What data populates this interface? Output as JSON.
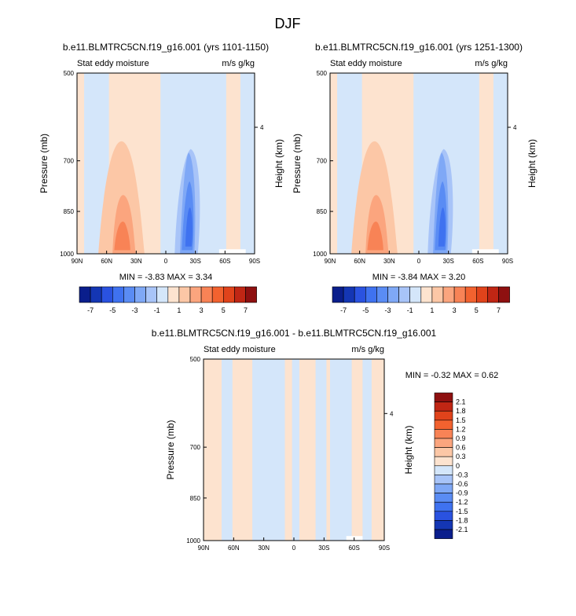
{
  "page": {
    "title": "DJF"
  },
  "colorbar_main": {
    "colors": [
      "#0a1e8c",
      "#1436b4",
      "#2a52e0",
      "#3f72f0",
      "#5a8cf4",
      "#7fa8f6",
      "#a8c4f8",
      "#d4e6fa",
      "#fde3cf",
      "#fcc7a6",
      "#fba57e",
      "#f88356",
      "#f2622f",
      "#e0431b",
      "#c02614",
      "#8e1010"
    ],
    "labels": [
      "-7",
      "-5",
      "-3",
      "-1",
      "1",
      "3",
      "5",
      "7"
    ]
  },
  "colorbar_diff": {
    "colors": [
      "#0a1e8c",
      "#1436b4",
      "#2a52e0",
      "#3f72f0",
      "#5a8cf4",
      "#7fa8f6",
      "#a8c4f8",
      "#d4e6fa",
      "#fde3cf",
      "#fcc7a6",
      "#fba57e",
      "#f88356",
      "#f2622f",
      "#e0431b",
      "#c02614",
      "#8e1010"
    ],
    "labels": [
      "-2.1",
      "-1.8",
      "-1.5",
      "-1.2",
      "-0.9",
      "-0.6",
      "-0.3",
      "0",
      "0.3",
      "0.6",
      "0.9",
      "1.2",
      "1.5",
      "1.8",
      "2.1"
    ]
  },
  "chart_data": [
    {
      "type": "heatmap",
      "title": "b.e11.BLMTRC5CN.f19_g16.001 (yrs 1101-1150)",
      "left_label": "Stat eddy moisture",
      "right_label": "m/s g/kg",
      "ylabel": "Pressure (mb)",
      "y2label": "Height (km)",
      "xticks": [
        "90N",
        "60N",
        "30N",
        "0",
        "30S",
        "60S",
        "90S"
      ],
      "yticks": [
        "500",
        "700",
        "850",
        "1000"
      ],
      "y2ticks": [
        "4"
      ],
      "stats": "MIN = -3.83 MAX = 3.34",
      "min": -3.83,
      "max": 3.34
    },
    {
      "type": "heatmap",
      "title": "b.e11.BLMTRC5CN.f19_g16.001 (yrs 1251-1300)",
      "left_label": "Stat eddy moisture",
      "right_label": "m/s g/kg",
      "ylabel": "Pressure (mb)",
      "y2label": "Height (km)",
      "xticks": [
        "90N",
        "60N",
        "30N",
        "0",
        "30S",
        "60S",
        "90S"
      ],
      "yticks": [
        "500",
        "700",
        "850",
        "1000"
      ],
      "y2ticks": [
        "4"
      ],
      "stats": "MIN = -3.84 MAX = 3.20",
      "min": -3.84,
      "max": 3.2
    },
    {
      "type": "heatmap",
      "title": "b.e11.BLMTRC5CN.f19_g16.001 - b.e11.BLMTRC5CN.f19_g16.001",
      "left_label": "Stat eddy moisture",
      "right_label": "m/s g/kg",
      "ylabel": "Pressure (mb)",
      "y2label": "Height (km)",
      "xticks": [
        "90N",
        "60N",
        "30N",
        "0",
        "30S",
        "60S",
        "90S"
      ],
      "yticks": [
        "500",
        "700",
        "850",
        "1000"
      ],
      "y2ticks": [
        "4"
      ],
      "stats": "MIN = -0.32 MAX = 0.62",
      "min": -0.32,
      "max": 0.62
    }
  ]
}
